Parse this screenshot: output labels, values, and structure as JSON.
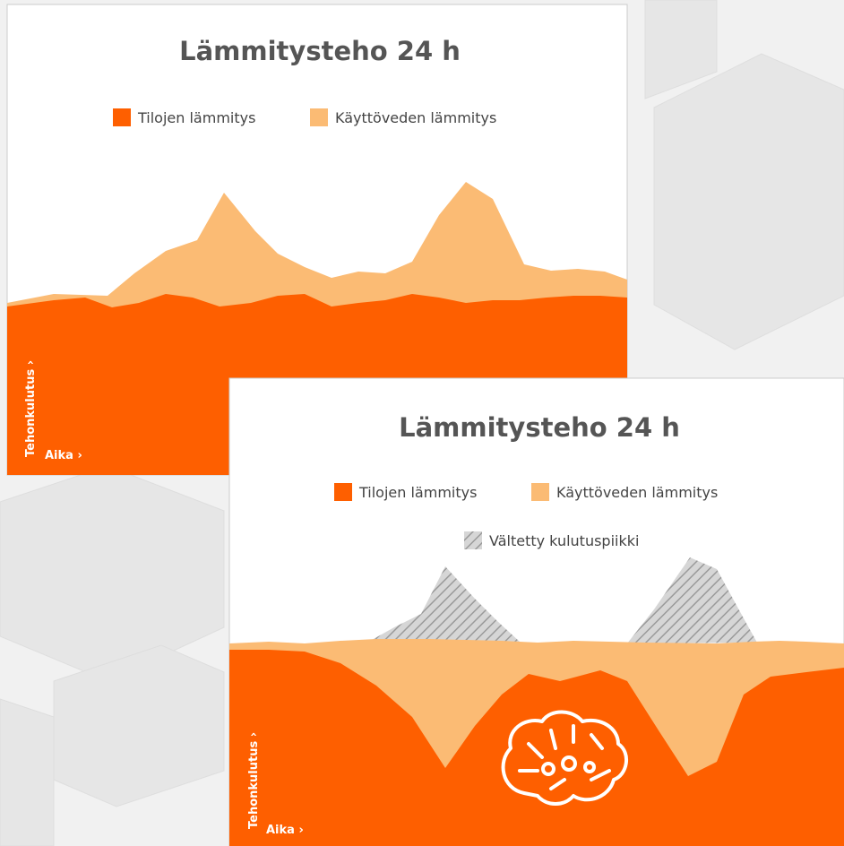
{
  "panels": [
    {
      "title": "Lämmitysteho 24 h",
      "legend": [
        "Tilojen lämmitys",
        "Käyttöveden lämmitys"
      ],
      "y_axis_label": "Tehonkulutus ›",
      "x_axis_label": "Aika ›"
    },
    {
      "title": "Lämmitysteho 24 h",
      "legend": [
        "Tilojen lämmitys",
        "Käyttöveden lämmitys",
        "Vältetty kulutuspiikki"
      ],
      "y_axis_label": "Tehonkulutus ›",
      "x_axis_label": "Aika ›"
    }
  ]
}
